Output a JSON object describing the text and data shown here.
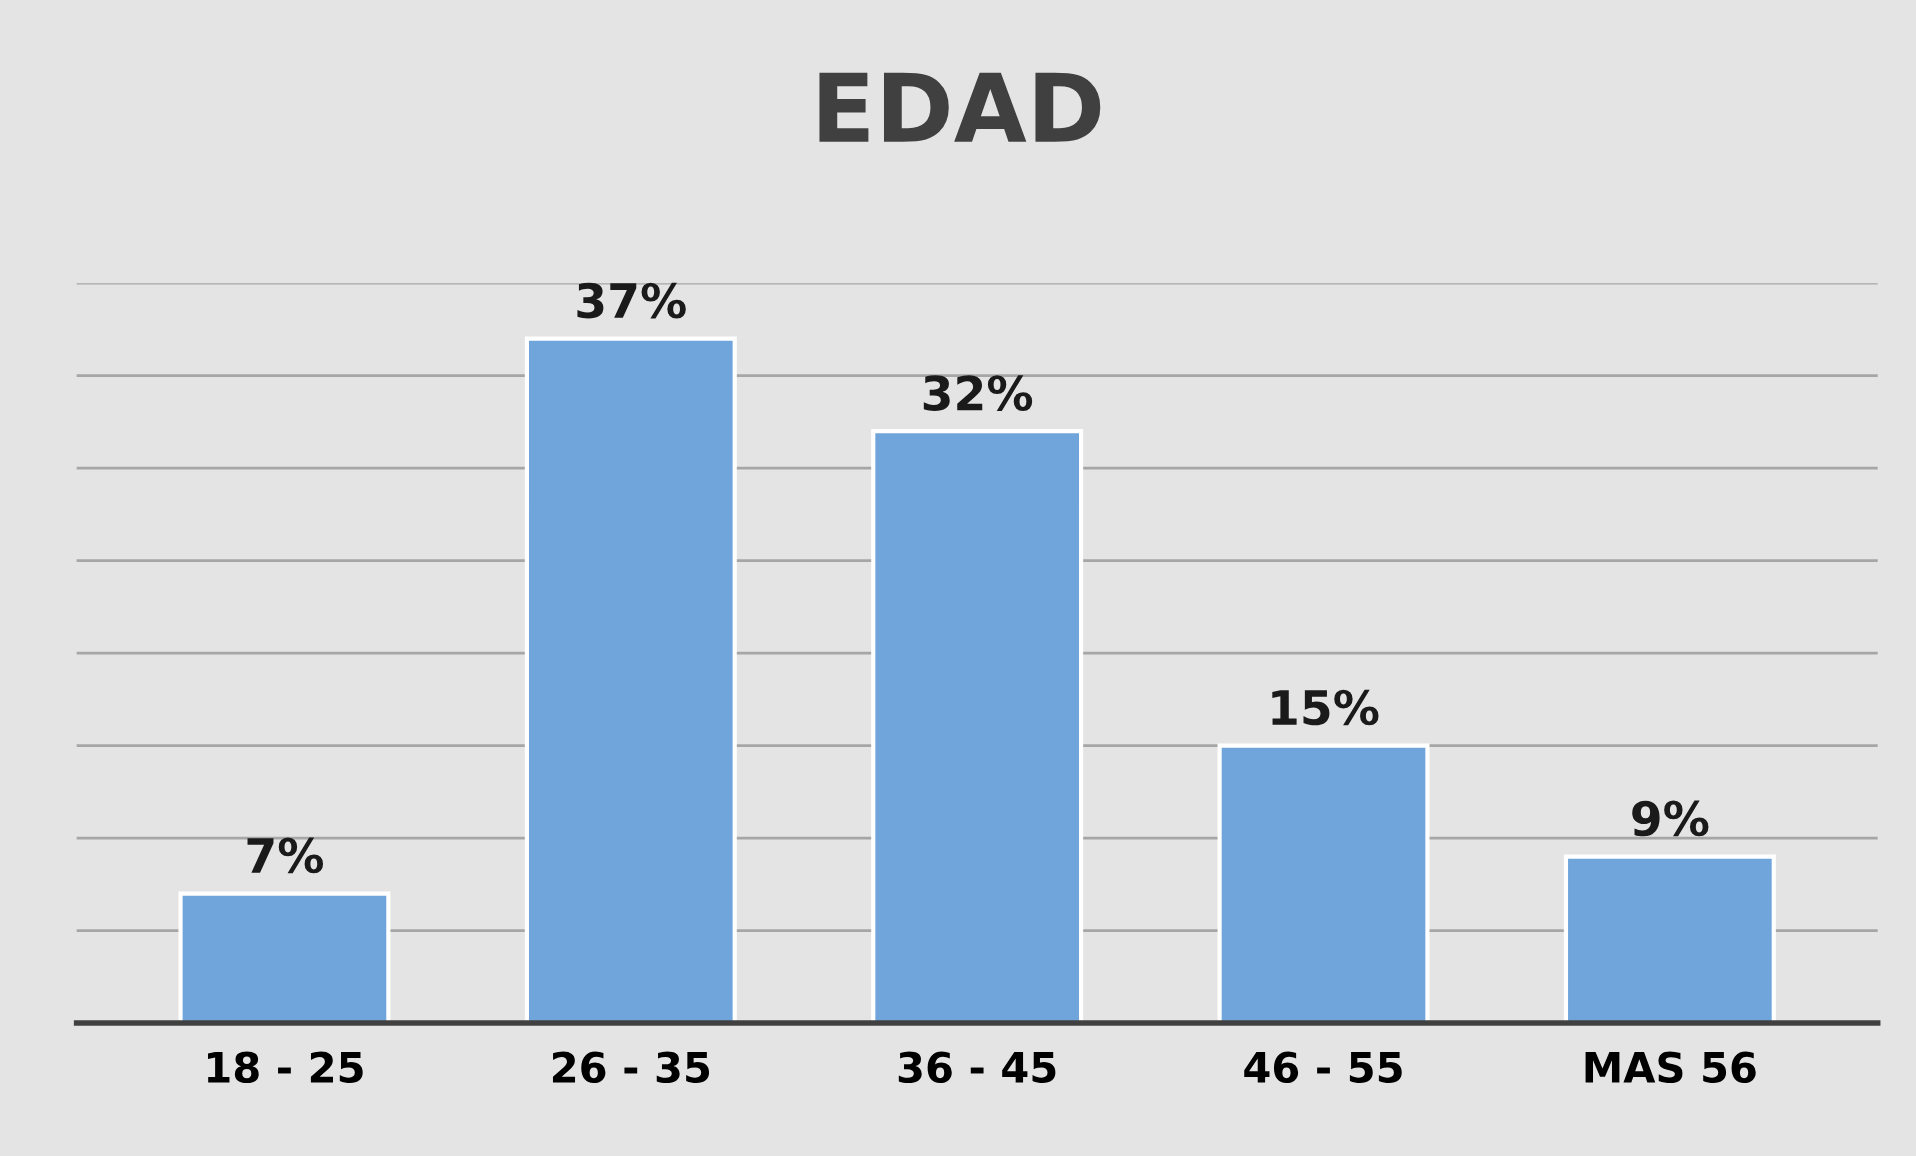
{
  "chart_data": {
    "type": "bar",
    "title": "EDAD",
    "categories": [
      "18 - 25",
      "26 - 35",
      "36 - 45",
      "46 - 55",
      "MAS 56"
    ],
    "values": [
      7,
      37,
      32,
      15,
      9
    ],
    "color": "#6fa5db",
    "data_labels": true,
    "value_labels": [
      "7%",
      "37%",
      "32%",
      "15%",
      "9%"
    ],
    "ylim": [
      0,
      40
    ],
    "yticks": [
      {
        "value": 0,
        "label": null
      },
      {
        "value": 5,
        "label": null
      },
      {
        "value": 10,
        "label": null
      },
      {
        "value": 15,
        "label": null
      },
      {
        "value": 20,
        "label": null
      },
      {
        "value": 25,
        "label": null
      },
      {
        "value": 30,
        "label": null
      },
      {
        "value": 35,
        "label": null
      },
      {
        "value": 40,
        "label": null
      }
    ],
    "grid": "y",
    "tick_labels": "x"
  }
}
